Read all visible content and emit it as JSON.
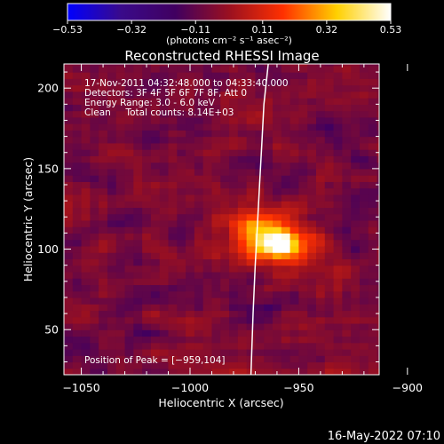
{
  "chart_data": {
    "type": "heatmap",
    "title": "Reconstructed RHESSI Image",
    "xlabel": "Heliocentric X (arcsec)",
    "ylabel": "Heliocentric Y (arcsec)",
    "xlim": [
      -1058,
      -913
    ],
    "ylim": [
      22,
      215
    ],
    "x_ticks": [
      -1050,
      -1000,
      -950,
      -900
    ],
    "x_tick_labels": [
      "−1050",
      "−1000",
      "−950",
      "−900"
    ],
    "y_ticks": [
      50,
      100,
      150,
      200
    ],
    "y_tick_labels": [
      "50",
      "100",
      "150",
      "200"
    ],
    "colorbar": {
      "min": -0.53,
      "max": 0.53,
      "ticks": [
        -0.53,
        -0.32,
        -0.11,
        0.11,
        0.32,
        0.53
      ],
      "tick_labels": [
        "−0.53",
        "−0.32",
        "−0.11",
        "0.11",
        "0.32",
        "0.53"
      ],
      "unit_label": "(photons cm⁻² s⁻¹ asec⁻²)",
      "colors": [
        "#0000ff",
        "#3a0a8a",
        "#400060",
        "#9a1020",
        "#ff3000",
        "#ffd000",
        "#ffffff"
      ]
    },
    "annotations": [
      "17-Nov-2011 04:32:48.000 to 04:33:40.000",
      "Detectors: 3F 4F 5F 6F 7F 8F, Att 0",
      "Energy Range: 3.0 - 6.0 keV",
      "Clean     Total counts: 8.14E+03"
    ],
    "peak_label": "Position of Peak = [−959,104]",
    "peak": {
      "x": -959,
      "y": 104,
      "value": 0.53
    },
    "sources": [
      {
        "x": -959,
        "y": 104,
        "amp": 0.53,
        "sigma": 4
      },
      {
        "x": -962,
        "y": 110,
        "amp": 0.26,
        "sigma": 11
      },
      {
        "x": -972,
        "y": 112,
        "amp": 0.18,
        "sigma": 9
      },
      {
        "x": -950,
        "y": 104,
        "amp": 0.14,
        "sigma": 8
      },
      {
        "x": -955,
        "y": 96,
        "amp": 0.12,
        "sigma": 9
      },
      {
        "x": -970,
        "y": 95,
        "amp": 0.1,
        "sigma": 7
      }
    ],
    "limb": [
      [
        -964,
        215
      ],
      [
        -966,
        190
      ],
      [
        -967,
        165
      ],
      [
        -968,
        140
      ],
      [
        -969,
        115
      ],
      [
        -970,
        90
      ],
      [
        -971,
        60
      ],
      [
        -972,
        22
      ]
    ],
    "grid": false
  },
  "footer_timestamp": "16-May-2022 07:10"
}
